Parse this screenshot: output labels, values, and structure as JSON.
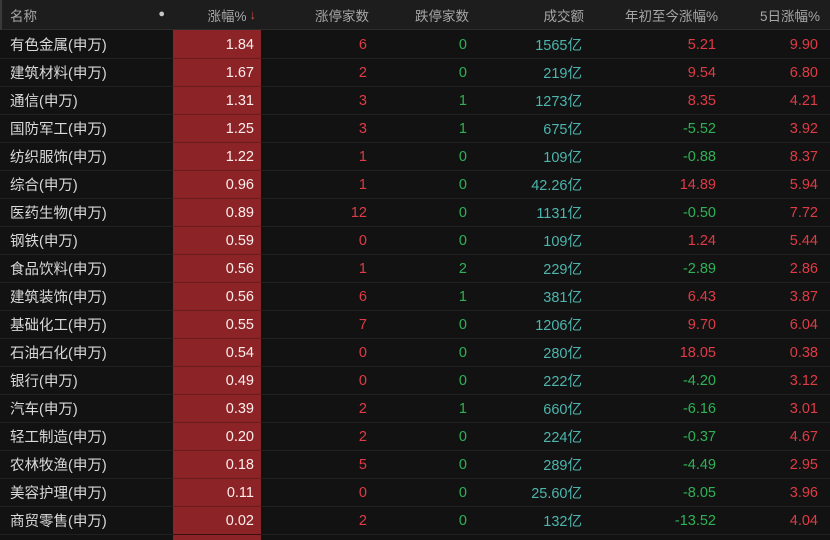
{
  "table": {
    "columns": {
      "name": "名称",
      "pct": "涨幅%",
      "limit_up": "涨停家数",
      "limit_down": "跌停家数",
      "turnover": "成交额",
      "ytd": "年初至今涨幅%",
      "d5": "5日涨幅%"
    },
    "sort": {
      "column": "pct",
      "direction": "desc",
      "icon": "↓"
    },
    "icons": {
      "name_column_dot": "●"
    },
    "rows": [
      {
        "name": "有色金属(申万)",
        "pct": "1.84",
        "limit_up": "6",
        "limit_down": "0",
        "turnover": "1565亿",
        "ytd": "5.21",
        "d5": "9.90"
      },
      {
        "name": "建筑材料(申万)",
        "pct": "1.67",
        "limit_up": "2",
        "limit_down": "0",
        "turnover": "219亿",
        "ytd": "9.54",
        "d5": "6.80"
      },
      {
        "name": "通信(申万)",
        "pct": "1.31",
        "limit_up": "3",
        "limit_down": "1",
        "turnover": "1273亿",
        "ytd": "8.35",
        "d5": "4.21"
      },
      {
        "name": "国防军工(申万)",
        "pct": "1.25",
        "limit_up": "3",
        "limit_down": "1",
        "turnover": "675亿",
        "ytd": "-5.52",
        "d5": "3.92"
      },
      {
        "name": "纺织服饰(申万)",
        "pct": "1.22",
        "limit_up": "1",
        "limit_down": "0",
        "turnover": "109亿",
        "ytd": "-0.88",
        "d5": "8.37"
      },
      {
        "name": "综合(申万)",
        "pct": "0.96",
        "limit_up": "1",
        "limit_down": "0",
        "turnover": "42.26亿",
        "ytd": "14.89",
        "d5": "5.94"
      },
      {
        "name": "医药生物(申万)",
        "pct": "0.89",
        "limit_up": "12",
        "limit_down": "0",
        "turnover": "1131亿",
        "ytd": "-0.50",
        "d5": "7.72"
      },
      {
        "name": "钢铁(申万)",
        "pct": "0.59",
        "limit_up": "0",
        "limit_down": "0",
        "turnover": "109亿",
        "ytd": "1.24",
        "d5": "5.44"
      },
      {
        "name": "食品饮料(申万)",
        "pct": "0.56",
        "limit_up": "1",
        "limit_down": "2",
        "turnover": "229亿",
        "ytd": "-2.89",
        "d5": "2.86"
      },
      {
        "name": "建筑装饰(申万)",
        "pct": "0.56",
        "limit_up": "6",
        "limit_down": "1",
        "turnover": "381亿",
        "ytd": "6.43",
        "d5": "3.87"
      },
      {
        "name": "基础化工(申万)",
        "pct": "0.55",
        "limit_up": "7",
        "limit_down": "0",
        "turnover": "1206亿",
        "ytd": "9.70",
        "d5": "6.04"
      },
      {
        "name": "石油石化(申万)",
        "pct": "0.54",
        "limit_up": "0",
        "limit_down": "0",
        "turnover": "280亿",
        "ytd": "18.05",
        "d5": "0.38"
      },
      {
        "name": "银行(申万)",
        "pct": "0.49",
        "limit_up": "0",
        "limit_down": "0",
        "turnover": "222亿",
        "ytd": "-4.20",
        "d5": "3.12"
      },
      {
        "name": "汽车(申万)",
        "pct": "0.39",
        "limit_up": "2",
        "limit_down": "1",
        "turnover": "660亿",
        "ytd": "-6.16",
        "d5": "3.01"
      },
      {
        "name": "轻工制造(申万)",
        "pct": "0.20",
        "limit_up": "2",
        "limit_down": "0",
        "turnover": "224亿",
        "ytd": "-0.37",
        "d5": "4.67"
      },
      {
        "name": "农林牧渔(申万)",
        "pct": "0.18",
        "limit_up": "5",
        "limit_down": "0",
        "turnover": "289亿",
        "ytd": "-4.49",
        "d5": "2.95"
      },
      {
        "name": "美容护理(申万)",
        "pct": "0.11",
        "limit_up": "0",
        "limit_down": "0",
        "turnover": "25.60亿",
        "ytd": "-8.05",
        "d5": "3.96"
      },
      {
        "name": "商贸零售(申万)",
        "pct": "0.02",
        "limit_up": "2",
        "limit_down": "0",
        "turnover": "132亿",
        "ytd": "-13.52",
        "d5": "4.04"
      }
    ]
  },
  "colors": {
    "up_red": "#e03b45",
    "down_green": "#2fb257",
    "turnover_teal": "#4db5ad",
    "pct_cell_bg": "#8c2427",
    "sort_arrow": "#cd4f43"
  }
}
